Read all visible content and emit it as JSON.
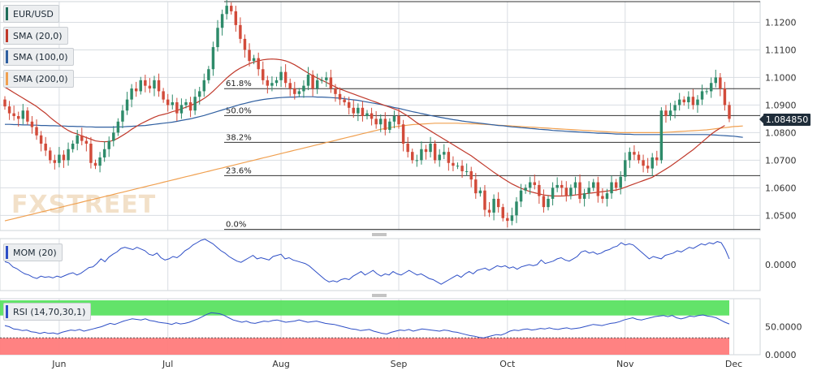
{
  "chart_data": {
    "type": "candlestick",
    "symbol": "EUR/USD",
    "watermark": "FXSTREET",
    "last_price": "1.084850",
    "x_ticks": [
      {
        "label": "Jun",
        "index": 12
      },
      {
        "label": "Jul",
        "index": 36
      },
      {
        "label": "Aug",
        "index": 61
      },
      {
        "label": "Sep",
        "index": 87
      },
      {
        "label": "Oct",
        "index": 111
      },
      {
        "label": "Nov",
        "index": 137
      },
      {
        "label": "Dec",
        "index": 161
      }
    ],
    "price_axis": {
      "ticks": [
        "1.1200",
        "1.1100",
        "1.1000",
        "1.0900",
        "1.0800",
        "1.0700",
        "1.0600",
        "1.0500"
      ],
      "ylim": [
        1.0445,
        1.1275
      ]
    },
    "fibonacci": {
      "low": 1.0449,
      "high": 1.1275,
      "levels": [
        {
          "label": "61.8%",
          "value": 0.618
        },
        {
          "label": "50.0%",
          "value": 0.5
        },
        {
          "label": "38.2%",
          "value": 0.382
        },
        {
          "label": "23.6%",
          "value": 0.236
        },
        {
          "label": "0.0%",
          "value": 0.0
        }
      ]
    },
    "indicators": [
      {
        "name": "SMA (20,0)",
        "color": "#c0392b"
      },
      {
        "name": "SMA (100,0)",
        "color": "#2f5fa0"
      },
      {
        "name": "SMA (200,0)",
        "color": "#f0a050"
      }
    ],
    "close": [
      1.0895,
      1.087,
      1.086,
      1.085,
      1.088,
      1.084,
      1.082,
      1.079,
      1.076,
      1.0735,
      1.07,
      1.069,
      1.072,
      1.07,
      1.074,
      1.076,
      1.079,
      1.077,
      1.076,
      1.069,
      1.068,
      1.071,
      1.074,
      1.077,
      1.08,
      1.084,
      1.088,
      1.092,
      1.096,
      1.095,
      1.099,
      1.097,
      1.096,
      1.099,
      1.095,
      1.092,
      1.09,
      1.091,
      1.087,
      1.09,
      1.091,
      1.088,
      1.093,
      1.095,
      1.099,
      1.103,
      1.111,
      1.118,
      1.123,
      1.126,
      1.124,
      1.119,
      1.114,
      1.11,
      1.106,
      1.107,
      1.103,
      1.099,
      1.097,
      1.098,
      1.099,
      1.102,
      1.098,
      1.096,
      1.094,
      1.095,
      1.097,
      1.101,
      1.096,
      1.099,
      1.099,
      1.1,
      1.096,
      1.094,
      1.092,
      1.091,
      1.089,
      1.087,
      1.089,
      1.086,
      1.087,
      1.085,
      1.083,
      1.085,
      1.081,
      1.084,
      1.086,
      1.083,
      1.076,
      1.073,
      1.07,
      1.07,
      1.074,
      1.073,
      1.076,
      1.07,
      1.072,
      1.073,
      1.069,
      1.068,
      1.068,
      1.066,
      1.066,
      1.063,
      1.058,
      1.059,
      1.052,
      1.051,
      1.056,
      1.053,
      1.049,
      1.048,
      1.05,
      1.055,
      1.059,
      1.06,
      1.062,
      1.061,
      1.057,
      1.053,
      1.056,
      1.06,
      1.061,
      1.06,
      1.057,
      1.06,
      1.062,
      1.056,
      1.058,
      1.06,
      1.062,
      1.057,
      1.056,
      1.058,
      1.062,
      1.06,
      1.064,
      1.07,
      1.073,
      1.072,
      1.07,
      1.068,
      1.067,
      1.071,
      1.07,
      1.088,
      1.086,
      1.088,
      1.09,
      1.092,
      1.091,
      1.093,
      1.09,
      1.092,
      1.095,
      1.095,
      1.098,
      1.1,
      1.096,
      1.09,
      1.085
    ],
    "open": [
      1.092,
      1.0895,
      1.087,
      1.086,
      1.085,
      1.088,
      1.084,
      1.082,
      1.079,
      1.076,
      1.0735,
      1.07,
      1.069,
      1.072,
      1.07,
      1.074,
      1.076,
      1.079,
      1.077,
      1.076,
      1.069,
      1.068,
      1.071,
      1.074,
      1.077,
      1.08,
      1.084,
      1.088,
      1.092,
      1.096,
      1.095,
      1.099,
      1.097,
      1.096,
      1.099,
      1.095,
      1.092,
      1.09,
      1.091,
      1.087,
      1.09,
      1.091,
      1.088,
      1.093,
      1.095,
      1.099,
      1.103,
      1.111,
      1.118,
      1.123,
      1.126,
      1.124,
      1.119,
      1.114,
      1.11,
      1.106,
      1.107,
      1.103,
      1.099,
      1.097,
      1.098,
      1.099,
      1.102,
      1.098,
      1.096,
      1.094,
      1.095,
      1.097,
      1.101,
      1.096,
      1.099,
      1.099,
      1.1,
      1.096,
      1.094,
      1.092,
      1.091,
      1.089,
      1.087,
      1.089,
      1.086,
      1.087,
      1.085,
      1.083,
      1.085,
      1.081,
      1.084,
      1.086,
      1.083,
      1.076,
      1.073,
      1.07,
      1.07,
      1.074,
      1.073,
      1.076,
      1.07,
      1.072,
      1.073,
      1.069,
      1.068,
      1.068,
      1.066,
      1.066,
      1.063,
      1.058,
      1.059,
      1.052,
      1.051,
      1.056,
      1.053,
      1.049,
      1.048,
      1.05,
      1.055,
      1.059,
      1.06,
      1.062,
      1.061,
      1.057,
      1.053,
      1.056,
      1.06,
      1.061,
      1.06,
      1.057,
      1.06,
      1.062,
      1.056,
      1.058,
      1.06,
      1.062,
      1.057,
      1.056,
      1.058,
      1.062,
      1.06,
      1.064,
      1.07,
      1.073,
      1.072,
      1.07,
      1.068,
      1.067,
      1.071,
      1.07,
      1.088,
      1.086,
      1.088,
      1.09,
      1.092,
      1.091,
      1.093,
      1.09,
      1.092,
      1.095,
      1.095,
      1.098,
      1.1,
      1.096,
      1.09
    ],
    "sma20": [
      1.0965,
      1.0955,
      1.0945,
      1.0935,
      1.0925,
      1.0915,
      1.0905,
      1.0895,
      1.0882,
      1.087,
      1.0855,
      1.0842,
      1.083,
      1.0818,
      1.0808,
      1.08,
      1.0795,
      1.0788,
      1.0782,
      1.0776,
      1.077,
      1.0768,
      1.0767,
      1.0768,
      1.0772,
      1.078,
      1.079,
      1.08,
      1.0812,
      1.0822,
      1.0832,
      1.084,
      1.0848,
      1.0856,
      1.0862,
      1.0866,
      1.087,
      1.0876,
      1.088,
      1.0886,
      1.0892,
      1.0898,
      1.0906,
      1.0914,
      1.0924,
      1.0936,
      1.095,
      1.0966,
      1.0982,
      1.0998,
      1.1012,
      1.1024,
      1.1034,
      1.1042,
      1.105,
      1.1056,
      1.106,
      1.1064,
      1.1066,
      1.1067,
      1.1066,
      1.1064,
      1.106,
      1.1054,
      1.1046,
      1.1036,
      1.1026,
      1.1016,
      1.1006,
      1.0998,
      1.099,
      1.0982,
      1.0974,
      1.0966,
      1.0958,
      1.0952,
      1.0946,
      1.094,
      1.0934,
      1.0928,
      1.0922,
      1.0916,
      1.091,
      1.0904,
      1.0898,
      1.0892,
      1.0886,
      1.088,
      1.087,
      1.086,
      1.0848,
      1.0836,
      1.0826,
      1.0816,
      1.0806,
      1.0796,
      1.0786,
      1.0776,
      1.0766,
      1.0756,
      1.0746,
      1.0736,
      1.0726,
      1.0716,
      1.0704,
      1.0692,
      1.068,
      1.0668,
      1.0656,
      1.0645,
      1.0634,
      1.0624,
      1.0614,
      1.0606,
      1.0598,
      1.0592,
      1.0586,
      1.0582,
      1.0578,
      1.0574,
      1.0572,
      1.057,
      1.057,
      1.057,
      1.0571,
      1.0572,
      1.0574,
      1.0576,
      1.0578,
      1.058,
      1.0582,
      1.0584,
      1.0586,
      1.0588,
      1.059,
      1.0592,
      1.0596,
      1.0602,
      1.0608,
      1.0614,
      1.062,
      1.0626,
      1.0632,
      1.0638,
      1.0648,
      1.0658,
      1.0668,
      1.0678,
      1.069,
      1.0702,
      1.0714,
      1.0726,
      1.0738,
      1.0752,
      1.0766,
      1.078,
      1.0794,
      1.0806,
      1.0816,
      1.0826
    ],
    "sma100": [
      1.083,
      1.083,
      1.0829,
      1.0829,
      1.0828,
      1.0828,
      1.0827,
      1.0827,
      1.0826,
      1.0826,
      1.0825,
      1.0825,
      1.0824,
      1.0824,
      1.0823,
      1.0823,
      1.0822,
      1.0822,
      1.0821,
      1.0821,
      1.082,
      1.082,
      1.082,
      1.082,
      1.082,
      1.0821,
      1.0821,
      1.0822,
      1.0823,
      1.0824,
      1.0825,
      1.0826,
      1.0828,
      1.083,
      1.0832,
      1.0834,
      1.0836,
      1.0838,
      1.0841,
      1.0844,
      1.0847,
      1.085,
      1.0854,
      1.0858,
      1.0862,
      1.0867,
      1.0872,
      1.0877,
      1.0882,
      1.0887,
      1.0892,
      1.0897,
      1.0902,
      1.0906,
      1.091,
      1.0914,
      1.0917,
      1.092,
      1.0922,
      1.0924,
      1.0926,
      1.0927,
      1.0928,
      1.0929,
      1.0929,
      1.093,
      1.093,
      1.093,
      1.093,
      1.0929,
      1.0929,
      1.0928,
      1.0927,
      1.0926,
      1.0925,
      1.0923,
      1.0921,
      1.0919,
      1.0917,
      1.0914,
      1.0911,
      1.0908,
      1.0905,
      1.0902,
      1.0898,
      1.0895,
      1.0891,
      1.0888,
      1.0884,
      1.088,
      1.0876,
      1.0873,
      1.0869,
      1.0866,
      1.0862,
      1.0859,
      1.0856,
      1.0853,
      1.085,
      1.0847,
      1.0845,
      1.0842,
      1.084,
      1.0838,
      1.0836,
      1.0834,
      1.0832,
      1.083,
      1.0828,
      1.0826,
      1.0825,
      1.0823,
      1.0821,
      1.082,
      1.0818,
      1.0817,
      1.0815,
      1.0814,
      1.0812,
      1.0811,
      1.081,
      1.0808,
      1.0807,
      1.0806,
      1.0805,
      1.0804,
      1.0803,
      1.0802,
      1.0801,
      1.08,
      1.0799,
      1.0798,
      1.0798,
      1.0797,
      1.0796,
      1.0795,
      1.0795,
      1.0794,
      1.0794,
      1.0793,
      1.0793,
      1.0793,
      1.0793,
      1.0793,
      1.0793,
      1.0793,
      1.0793,
      1.0793,
      1.0793,
      1.0793,
      1.0793,
      1.0793,
      1.0793,
      1.0793,
      1.0793,
      1.0793,
      1.0792,
      1.0791,
      1.079,
      1.0789,
      1.0788,
      1.0787,
      1.0785,
      1.0783
    ],
    "sma200": [
      1.048,
      1.0484,
      1.0488,
      1.0492,
      1.0496,
      1.05,
      1.0504,
      1.0508,
      1.0512,
      1.0516,
      1.052,
      1.0524,
      1.0528,
      1.0532,
      1.0536,
      1.054,
      1.0544,
      1.0548,
      1.0552,
      1.0556,
      1.056,
      1.0564,
      1.0568,
      1.0572,
      1.0576,
      1.058,
      1.0584,
      1.0588,
      1.0592,
      1.0596,
      1.06,
      1.0604,
      1.0608,
      1.0612,
      1.0616,
      1.062,
      1.0624,
      1.0628,
      1.0632,
      1.0636,
      1.064,
      1.0644,
      1.0648,
      1.0652,
      1.0656,
      1.066,
      1.0664,
      1.0668,
      1.0672,
      1.0676,
      1.068,
      1.0684,
      1.0688,
      1.0692,
      1.0696,
      1.07,
      1.0704,
      1.0708,
      1.0712,
      1.0716,
      1.072,
      1.0724,
      1.0728,
      1.0732,
      1.0736,
      1.074,
      1.0744,
      1.0748,
      1.0752,
      1.0756,
      1.076,
      1.0764,
      1.0768,
      1.0772,
      1.0776,
      1.078,
      1.0784,
      1.0788,
      1.0792,
      1.0796,
      1.08,
      1.0804,
      1.0808,
      1.0812,
      1.0815,
      1.0818,
      1.0821,
      1.0823,
      1.0825,
      1.0827,
      1.0829,
      1.083,
      1.0831,
      1.0832,
      1.0833,
      1.0834,
      1.0834,
      1.0834,
      1.0834,
      1.0834,
      1.0834,
      1.0833,
      1.0833,
      1.0832,
      1.0832,
      1.0831,
      1.083,
      1.0829,
      1.0828,
      1.0827,
      1.0826,
      1.0825,
      1.0824,
      1.0823,
      1.0822,
      1.0821,
      1.082,
      1.0819,
      1.0818,
      1.0817,
      1.0816,
      1.0815,
      1.0814,
      1.0813,
      1.0812,
      1.0811,
      1.081,
      1.0809,
      1.0808,
      1.0807,
      1.0806,
      1.0805,
      1.0804,
      1.0803,
      1.0802,
      1.0801,
      1.08,
      1.08,
      1.08,
      1.08,
      1.08,
      1.08,
      1.08,
      1.08,
      1.08,
      1.08,
      1.0801,
      1.0802,
      1.0803,
      1.0804,
      1.0805,
      1.0806,
      1.0807,
      1.0808,
      1.0809,
      1.081,
      1.0812,
      1.0814,
      1.0816,
      1.0818,
      1.082,
      1.0822,
      1.0823,
      1.0824
    ],
    "mom_panel": {
      "title": "MOM (20)",
      "ticks": [
        "0.0000"
      ],
      "ylim": [
        -0.045,
        0.045
      ],
      "values": [
        0.005,
        0.003,
        -0.004,
        -0.007,
        -0.012,
        -0.016,
        -0.018,
        -0.022,
        -0.024,
        -0.02,
        -0.022,
        -0.021,
        -0.023,
        -0.02,
        -0.022,
        -0.019,
        -0.016,
        -0.014,
        -0.018,
        -0.015,
        -0.01,
        -0.005,
        -0.004,
        0.002,
        0.01,
        0.005,
        0.013,
        0.018,
        0.022,
        0.028,
        0.03,
        0.028,
        0.026,
        0.03,
        0.027,
        0.024,
        0.018,
        0.016,
        0.02,
        0.012,
        0.008,
        0.01,
        0.014,
        0.012,
        0.017,
        0.024,
        0.028,
        0.034,
        0.038,
        0.042,
        0.044,
        0.04,
        0.036,
        0.03,
        0.024,
        0.02,
        0.014,
        0.01,
        0.006,
        0.004,
        0.008,
        0.012,
        0.016,
        0.01,
        0.012,
        0.01,
        0.008,
        0.014,
        0.016,
        0.018,
        0.01,
        0.012,
        0.008,
        0.006,
        0.004,
        0.002,
        -0.002,
        -0.008,
        -0.014,
        -0.02,
        -0.026,
        -0.03,
        -0.028,
        -0.03,
        -0.026,
        -0.024,
        -0.026,
        -0.02,
        -0.016,
        -0.012,
        -0.018,
        -0.014,
        -0.01,
        -0.016,
        -0.02,
        -0.016,
        -0.018,
        -0.012,
        -0.016,
        -0.018,
        -0.014,
        -0.01,
        -0.014,
        -0.018,
        -0.016,
        -0.02,
        -0.024,
        -0.026,
        -0.03,
        -0.034,
        -0.03,
        -0.026,
        -0.022,
        -0.018,
        -0.022,
        -0.016,
        -0.012,
        -0.016,
        -0.01,
        -0.008,
        -0.006,
        -0.01,
        -0.006,
        -0.002,
        -0.004,
        -0.002,
        -0.006,
        -0.004,
        -0.008,
        -0.004,
        -0.002,
        0.0,
        -0.002,
        0.0,
        0.008,
        0.002,
        0.004,
        0.006,
        0.01,
        0.012,
        0.008,
        0.006,
        0.01,
        0.014,
        0.022,
        0.024,
        0.02,
        0.022,
        0.018,
        0.02,
        0.024,
        0.026,
        0.03,
        0.032,
        0.038,
        0.034,
        0.036,
        0.034,
        0.028,
        0.022,
        0.016,
        0.01,
        0.014,
        0.012,
        0.01,
        0.016,
        0.018,
        0.02,
        0.024,
        0.022,
        0.026,
        0.03,
        0.028,
        0.032,
        0.036,
        0.034,
        0.038,
        0.036,
        0.04,
        0.038,
        0.026,
        0.01
      ]
    },
    "rsi_panel": {
      "title": "RSI (14,70,30,1)",
      "ticks": [
        "50.0000",
        "0.0000"
      ],
      "ylim": [
        0,
        100
      ],
      "overbought": 70,
      "oversold": 30,
      "values": [
        52,
        50,
        46,
        45,
        43,
        44,
        41,
        40,
        38,
        40,
        38,
        39,
        37,
        40,
        42,
        44,
        43,
        45,
        42,
        44,
        46,
        48,
        50,
        53,
        56,
        54,
        57,
        60,
        62,
        64,
        63,
        62,
        64,
        61,
        60,
        58,
        57,
        56,
        54,
        57,
        55,
        56,
        58,
        61,
        64,
        68,
        72,
        75,
        74,
        73,
        70,
        66,
        62,
        60,
        58,
        60,
        57,
        56,
        58,
        60,
        59,
        61,
        62,
        60,
        58,
        59,
        60,
        62,
        60,
        58,
        59,
        60,
        58,
        56,
        55,
        54,
        52,
        50,
        48,
        46,
        45,
        43,
        44,
        45,
        42,
        40,
        38,
        37,
        40,
        42,
        44,
        43,
        45,
        42,
        44,
        46,
        45,
        44,
        43,
        42,
        44,
        43,
        41,
        40,
        38,
        36,
        34,
        33,
        31,
        30,
        32,
        34,
        36,
        35,
        38,
        42,
        44,
        43,
        45,
        46,
        44,
        45,
        47,
        46,
        48,
        46,
        45,
        47,
        48,
        46,
        47,
        48,
        50,
        52,
        54,
        53,
        52,
        54,
        56,
        57,
        59,
        62,
        64,
        66,
        63,
        62,
        64,
        66,
        68,
        69,
        70,
        68,
        70,
        66,
        64,
        66,
        69,
        68,
        70,
        71,
        69,
        68,
        66,
        62,
        58,
        55
      ]
    }
  },
  "legend": [
    {
      "label": "EUR/USD",
      "color": "#1f6e5a"
    },
    {
      "label": "SMA (20,0)",
      "color": "#c0392b"
    },
    {
      "label": "SMA (100,0)",
      "color": "#2f5fa0"
    },
    {
      "label": "SMA (200,0)",
      "color": "#f0a050"
    }
  ],
  "colors": {
    "bull": "#2e8b6a",
    "bear": "#d24b3a",
    "grid": "#d9dde2",
    "fib_line": "#333333",
    "rsi_overbought": "#52e05a",
    "rsi_oversold": "#ff7b7b"
  }
}
